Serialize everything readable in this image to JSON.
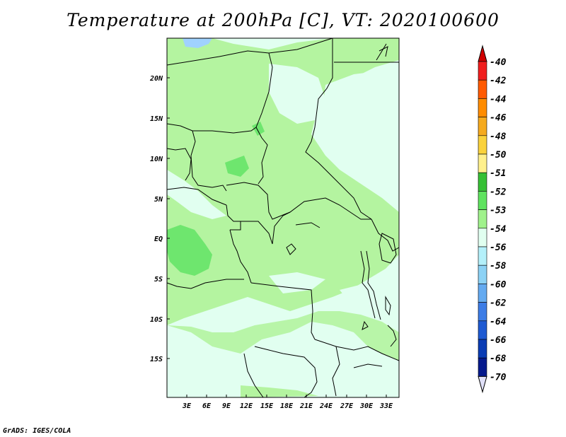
{
  "title": "Temperature at 200hPa [C], VT: 2020100600",
  "credit": "GrADS: IGES/COLA",
  "lat_labels": [
    "20N",
    "15N",
    "10N",
    "5N",
    "EQ",
    "5S",
    "10S",
    "15S"
  ],
  "lon_labels": [
    "3E",
    "6E",
    "9E",
    "12E",
    "15E",
    "18E",
    "21E",
    "24E",
    "27E",
    "30E",
    "33E"
  ],
  "colorbar": {
    "labels": [
      "-40",
      "-42",
      "-44",
      "-46",
      "-48",
      "-50",
      "-51",
      "-52",
      "-53",
      "-54",
      "-56",
      "-58",
      "-60",
      "-62",
      "-64",
      "-66",
      "-68",
      "-70"
    ],
    "colors": [
      "#f01e1e",
      "#ff5a00",
      "#ff8c00",
      "#f5aa1e",
      "#fad23c",
      "#fff08c",
      "#36c035",
      "#5fe35f",
      "#a0f28c",
      "#e1fff0",
      "#b4f0fa",
      "#8cd2f5",
      "#64aaf0",
      "#3c7ce6",
      "#1e5ad2",
      "#0a3cb4",
      "#05198c",
      "#e6e6fa"
    ],
    "top_arrow_color": "#d00000",
    "bottom_arrow_color": "#e0e0f8"
  },
  "colors": {
    "cold_band": "#e1fff0",
    "mid_band": "#b4f4a0",
    "warm_band": "#6ee66e",
    "lake": "#a0d2ff",
    "border": "#000000"
  }
}
